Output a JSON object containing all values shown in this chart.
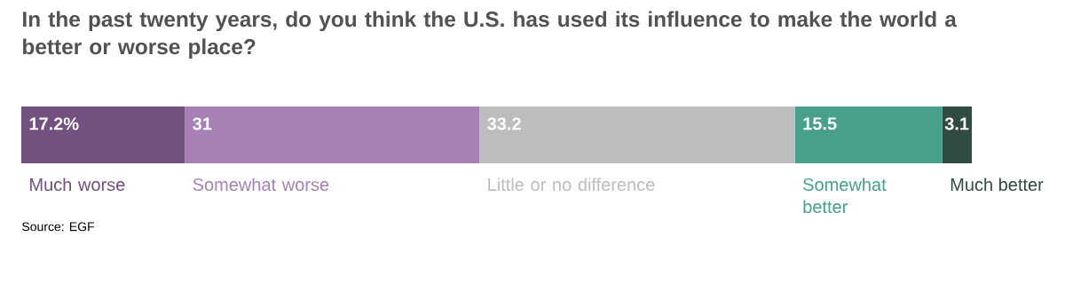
{
  "chart_data": {
    "type": "bar",
    "orientation": "horizontal",
    "stacked": true,
    "title": "In the past twenty years, do you think the U.S. has used its influence to make the world a better or worse place?",
    "annotations": [
      "Source: EGF"
    ],
    "categories": [
      null
    ],
    "xlim": [
      0,
      100
    ],
    "tick_labels": false,
    "series": [
      {
        "name": "Much worse",
        "color": "#72507f",
        "values": [
          17.2
        ],
        "value_labels": [
          "17.2%"
        ]
      },
      {
        "name": "Somewhat worse",
        "color": "#a781b5",
        "values": [
          31
        ],
        "value_labels": [
          "31"
        ]
      },
      {
        "name": "Little or no difference",
        "color": "#bcbdbf",
        "values": [
          33.2
        ],
        "value_labels": [
          "33.2"
        ]
      },
      {
        "name": "Somewhat better",
        "color": "#48a08c",
        "values": [
          15.5
        ],
        "value_labels": [
          "15.5"
        ]
      },
      {
        "name": "Much better",
        "color": "#314a42",
        "values": [
          3.1
        ],
        "value_labels": [
          "3.1"
        ]
      }
    ]
  }
}
